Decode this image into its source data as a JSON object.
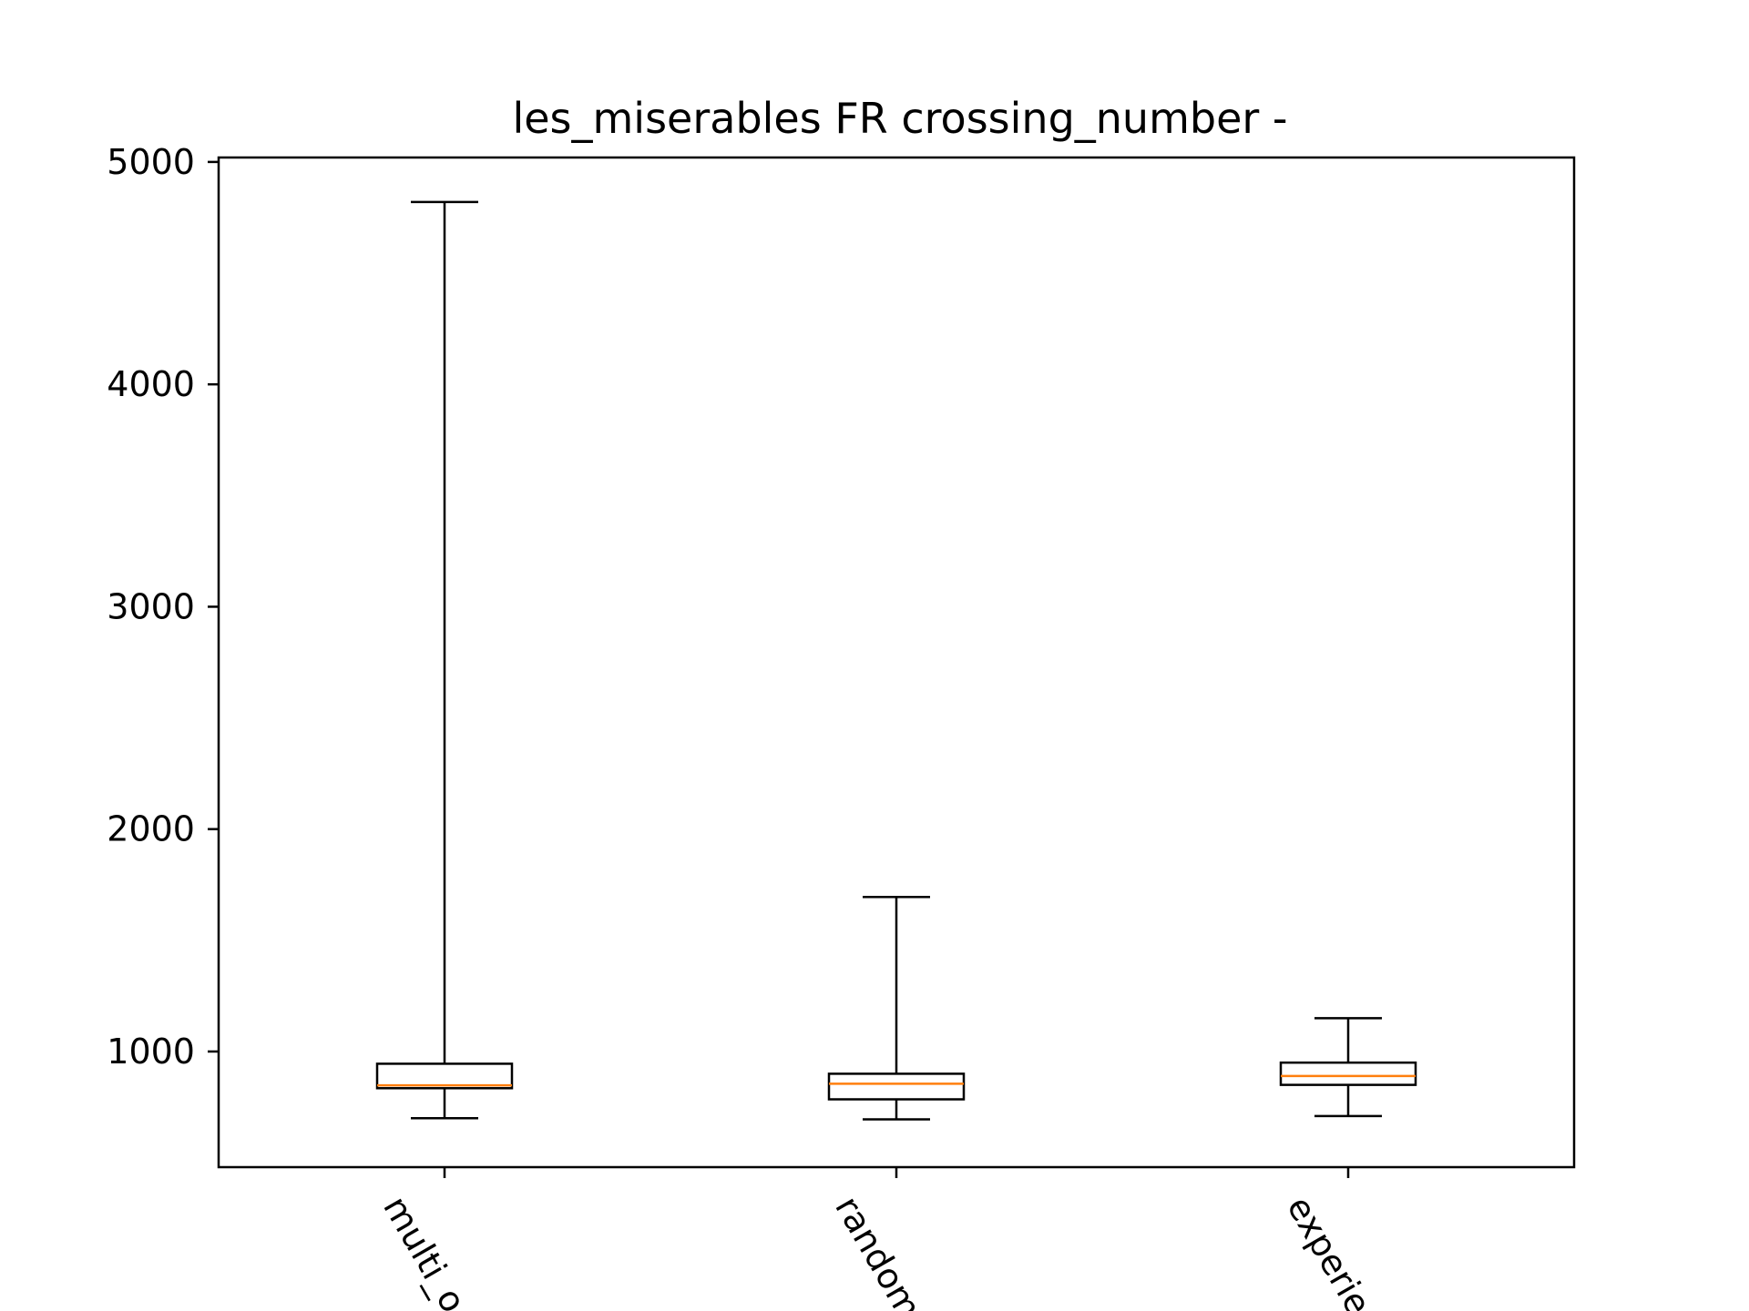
{
  "chart_data": {
    "type": "box",
    "title": "les_miserables FR crossing_number -",
    "xlabel": "",
    "ylabel": "",
    "ylim": [
      480,
      5020
    ],
    "yticks": [
      1000,
      2000,
      3000,
      4000,
      5000
    ],
    "ytick_labels": [
      "1000",
      "2000",
      "3000",
      "4000",
      "5000"
    ],
    "categories": [
      "multi_o",
      "random",
      "experie"
    ],
    "boxes": [
      {
        "whisker_low": 700,
        "q1": 835,
        "median": 848,
        "q3": 945,
        "whisker_high": 4820
      },
      {
        "whisker_low": 695,
        "q1": 785,
        "median": 855,
        "q3": 900,
        "whisker_high": 1695
      },
      {
        "whisker_low": 710,
        "q1": 850,
        "median": 890,
        "q3": 950,
        "whisker_high": 1150
      }
    ],
    "grid": false,
    "legend": "none",
    "colors": {
      "box": "#000000",
      "median": "#ff7f0e",
      "axes": "#000000",
      "background": "#ffffff"
    }
  }
}
